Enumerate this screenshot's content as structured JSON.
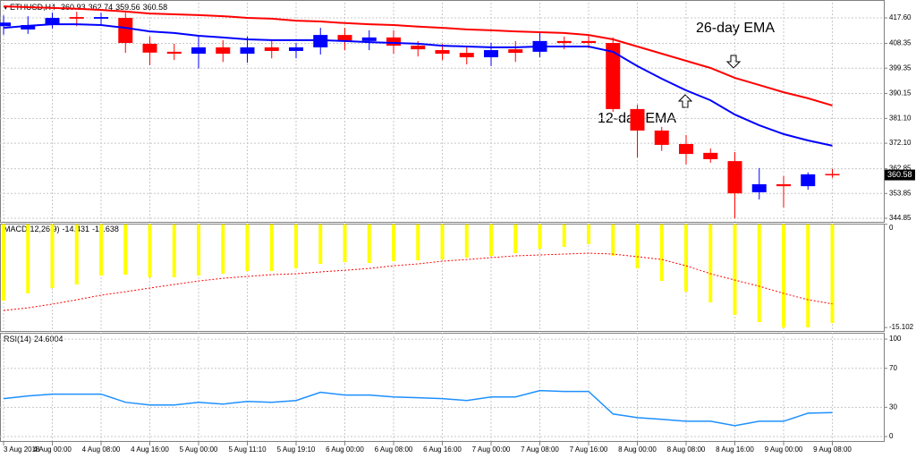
{
  "chart_data": [
    {
      "type": "candlestick",
      "title": "ETHUSD,H4",
      "categories": [
        "3 Aug 2018",
        null,
        "4 Aug 00:00",
        null,
        "4 Aug 08:00",
        null,
        "4 Aug 16:00",
        null,
        "5 Aug 00:00",
        null,
        "5 Aug 11:10",
        null,
        "5 Aug 19:10",
        null,
        "6 Aug 00:00",
        null,
        "6 Aug 08:00",
        null,
        "6 Aug 16:00",
        null,
        "7 Aug 00:00",
        null,
        "7 Aug 08:00",
        null,
        "7 Aug 16:00",
        null,
        "8 Aug 00:00",
        null,
        "8 Aug 08:00",
        null,
        "8 Aug 16:00",
        null,
        "9 Aug 00:00",
        null,
        "9 Aug 08:00"
      ],
      "open": [
        414.6,
        413.4,
        415.3,
        417.9,
        417.3,
        417.6,
        408.2,
        405.3,
        404.6,
        406.9,
        404.6,
        406.9,
        405.6,
        406.9,
        411.4,
        409.2,
        410.5,
        407.5,
        405.9,
        404.9,
        403.3,
        406.2,
        405.3,
        409.2,
        409.2,
        408.5,
        384.5,
        376.7,
        371.8,
        368.6,
        365.6,
        354.3,
        357.2,
        356.5,
        360.93
      ],
      "high": [
        418.5,
        418.2,
        419.5,
        419.8,
        419.5,
        419.5,
        410.8,
        408.2,
        410.8,
        409.5,
        410.8,
        409.2,
        408.5,
        414.0,
        414.0,
        413.1,
        413.1,
        409.2,
        408.2,
        407.2,
        408.5,
        409.2,
        412.1,
        410.8,
        411.1,
        410.5,
        386.0,
        378.0,
        375.1,
        370.2,
        368.9,
        363.1,
        360.1,
        361.5,
        362.74
      ],
      "low": [
        411.5,
        411.8,
        413.8,
        414.6,
        415.0,
        404.9,
        400.4,
        402.3,
        399.2,
        401.6,
        401.3,
        402.9,
        402.9,
        404.3,
        405.9,
        405.9,
        404.6,
        403.6,
        402.3,
        400.7,
        400.1,
        401.6,
        403.3,
        406.2,
        406.5,
        383.5,
        366.9,
        369.3,
        364.4,
        365.0,
        344.8,
        351.7,
        348.8,
        355.2,
        359.56
      ],
      "close": [
        415.9,
        415.0,
        417.6,
        417.3,
        417.9,
        408.5,
        405.0,
        404.6,
        406.9,
        404.6,
        406.9,
        405.6,
        406.9,
        411.4,
        409.2,
        410.5,
        407.5,
        406.2,
        404.6,
        403.3,
        405.9,
        404.9,
        409.2,
        408.5,
        408.5,
        384.5,
        376.7,
        371.5,
        368.2,
        366.3,
        353.9,
        357.2,
        356.5,
        360.8,
        360.58
      ],
      "up_color": "#0000ff",
      "down_color": "#ff0000",
      "series": [
        {
          "name": "26-day EMA",
          "color": "#ff0000",
          "values": [
            421.8,
            421.5,
            421.2,
            420.9,
            420.5,
            419.9,
            419.2,
            418.9,
            418.6,
            418.2,
            417.6,
            417.3,
            416.6,
            416.3,
            415.7,
            415.3,
            415.0,
            414.4,
            414.0,
            413.4,
            413.1,
            412.7,
            412.4,
            412.1,
            411.4,
            409.8,
            407.2,
            404.6,
            402.0,
            399.4,
            395.8,
            393.2,
            390.6,
            388.4,
            385.8
          ]
        },
        {
          "name": "12-day EMA",
          "color": "#0000ff",
          "values": [
            414.0,
            414.7,
            415.3,
            415.3,
            415.0,
            414.0,
            412.7,
            412.1,
            411.1,
            410.5,
            409.8,
            409.5,
            409.5,
            409.5,
            409.2,
            408.8,
            408.5,
            408.2,
            407.5,
            407.2,
            406.9,
            406.9,
            407.2,
            407.2,
            407.2,
            405.3,
            400.1,
            395.5,
            391.3,
            387.7,
            382.5,
            378.6,
            375.4,
            373.1,
            371.2
          ]
        }
      ],
      "ylim": [
        343.55,
        423.12
      ],
      "yticks": [
        {
          "value": 417.6,
          "label": "417.60"
        },
        408.35,
        399.35,
        390.15,
        {
          "value": 381.1,
          "label": "381.10"
        },
        {
          "value": 372.1,
          "label": "372.10"
        },
        362.85,
        353.85,
        344.85
      ],
      "grid": true
    },
    {
      "type": "macd",
      "title": "MACD(12,26,9)",
      "values": [
        -11.16,
        -10.11,
        -9.32,
        -8.8,
        -7.49,
        -7.36,
        -7.75,
        -7.75,
        -7.49,
        -7.23,
        -6.84,
        -6.84,
        -6.45,
        -5.79,
        -5.53,
        -5.66,
        -5.4,
        -5.27,
        -5.14,
        -4.87,
        -4.61,
        -4.22,
        -3.57,
        -3.31,
        -2.91,
        -4.61,
        -6.45,
        -8.28,
        -9.85,
        -11.42,
        -13.25,
        -14.3,
        -15.08,
        -15.08,
        -14.431
      ],
      "color": "#ffff00",
      "signal": [
        -12.6,
        -12.21,
        -11.68,
        -11.03,
        -10.37,
        -9.85,
        -9.32,
        -8.8,
        -8.28,
        -7.89,
        -7.62,
        -7.36,
        -7.23,
        -6.97,
        -6.71,
        -6.45,
        -6.06,
        -5.79,
        -5.4,
        -5.14,
        -4.87,
        -4.61,
        -4.48,
        -4.35,
        -4.22,
        -4.35,
        -4.74,
        -5.14,
        -6.06,
        -7.23,
        -8.15,
        -9.06,
        -10.11,
        -11.03,
        -11.638
      ],
      "signal_color": "#ff0000",
      "ylim": [
        -15.6,
        0.1
      ],
      "yticks": [
        0,
        -15.102
      ]
    },
    {
      "type": "line",
      "title": "RSI(14)",
      "values": [
        38.9,
        41.7,
        43.5,
        43.5,
        43.5,
        35.2,
        32.4,
        32.4,
        35.2,
        33.3,
        36.1,
        35.2,
        37.0,
        45.4,
        42.6,
        42.6,
        40.7,
        39.8,
        38.9,
        37.0,
        40.7,
        40.7,
        47.2,
        46.3,
        46.3,
        23.1,
        19.4,
        17.6,
        15.7,
        15.7,
        11.1,
        15.7,
        15.7,
        24.0,
        24.6004
      ],
      "color": "#1e90ff",
      "ylim": [
        -4.6,
        106.5
      ],
      "yticks": [
        0,
        30,
        70,
        100
      ],
      "grid": true
    }
  ]
}
